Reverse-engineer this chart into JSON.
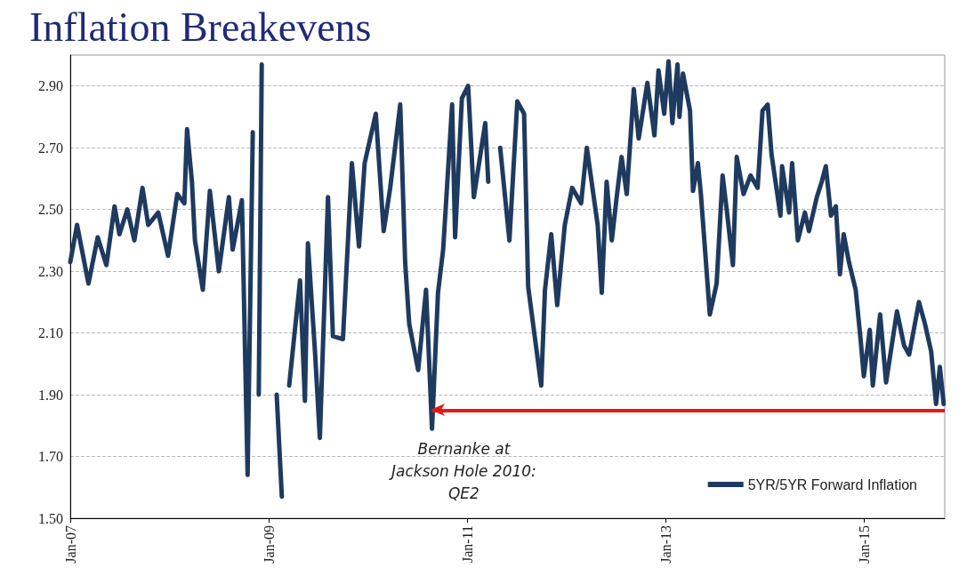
{
  "chart_data": {
    "type": "line",
    "title": "Inflation Breakevens",
    "x": [
      "2007-01-01",
      "2007-01-26",
      "2007-03-09",
      "2007-04-12",
      "2007-05-14",
      "2007-06-13",
      "2007-07-01",
      "2007-07-30",
      "2007-08-25",
      "2007-09-24",
      "2007-10-15",
      "2007-11-21",
      "2007-12-27",
      "2008-01-30",
      "2008-02-25",
      "2008-03-06",
      "2008-03-24",
      "2008-04-04",
      "2008-05-03",
      "2008-05-29",
      "2008-07-01",
      "2008-08-07",
      "2008-08-21",
      "2008-09-24",
      "2008-10-15",
      "2008-11-03",
      "2008-11-14",
      "2008-11-25",
      "2008-12-06",
      "2008-12-13",
      "2009-01-12",
      "2009-01-30",
      "2009-02-18",
      "2009-03-06",
      "2009-03-17",
      "2009-04-26",
      "2009-05-14",
      "2009-05-25",
      "2009-06-20",
      "2009-07-08",
      "2009-08-07",
      "2009-08-25",
      "2009-10-01",
      "2009-11-03",
      "2009-11-29",
      "2009-12-20",
      "2010-01-30",
      "2010-02-28",
      "2010-03-24",
      "2010-04-30",
      "2010-05-18",
      "2010-06-02",
      "2010-07-05",
      "2010-08-03",
      "2010-08-25",
      "2010-09-16",
      "2010-10-05",
      "2010-11-07",
      "2010-11-18",
      "2010-12-13",
      "2011-01-05",
      "2011-01-26",
      "2011-03-09",
      "2011-03-20",
      "2011-04-19",
      "2011-05-03",
      "2011-06-06",
      "2011-07-05",
      "2011-07-30",
      "2011-08-14",
      "2011-10-01",
      "2011-10-15",
      "2011-11-07",
      "2011-11-29",
      "2011-12-27",
      "2012-01-23",
      "2012-02-25",
      "2012-03-17",
      "2012-04-26",
      "2012-05-11",
      "2012-05-29",
      "2012-06-17",
      "2012-07-05",
      "2012-07-23",
      "2012-08-11",
      "2012-09-06",
      "2012-09-24",
      "2012-10-26",
      "2012-11-21",
      "2012-12-06",
      "2012-12-27",
      "2013-01-12",
      "2013-01-26",
      "2013-02-14",
      "2013-02-21",
      "2013-03-06",
      "2013-04-01",
      "2013-04-12",
      "2013-04-30",
      "2013-05-11",
      "2013-06-13",
      "2013-07-08",
      "2013-07-30",
      "2013-08-14",
      "2013-09-06",
      "2013-09-20",
      "2013-10-15",
      "2013-11-10",
      "2013-12-06",
      "2013-12-24",
      "2014-01-12",
      "2014-01-26",
      "2014-02-28",
      "2014-03-06",
      "2014-04-01",
      "2014-04-12",
      "2014-05-03",
      "2014-05-29",
      "2014-06-13",
      "2014-07-12",
      "2014-07-30",
      "2014-08-14",
      "2014-09-02",
      "2014-09-20",
      "2014-10-05",
      "2014-10-19",
      "2014-11-07",
      "2014-12-02",
      "2014-12-20",
      "2015-01-01",
      "2015-01-23",
      "2015-02-03",
      "2015-03-02",
      "2015-03-24",
      "2015-05-03",
      "2015-05-29",
      "2015-06-17",
      "2015-07-23",
      "2015-08-14",
      "2015-09-06",
      "2015-09-24",
      "2015-10-08",
      "2015-10-22"
    ],
    "series": [
      {
        "name": "5YR/5YR Forward Inflation",
        "color": "#1f3a5f",
        "values": [
          2.33,
          2.45,
          2.26,
          2.41,
          2.32,
          2.51,
          2.42,
          2.5,
          2.4,
          2.57,
          2.45,
          2.49,
          2.35,
          2.55,
          2.52,
          2.76,
          2.59,
          2.4,
          2.24,
          2.56,
          2.3,
          2.54,
          2.37,
          2.53,
          1.64,
          2.75,
          null,
          1.9,
          2.97,
          null,
          null,
          1.9,
          1.57,
          null,
          1.93,
          2.27,
          1.88,
          2.39,
          2.04,
          1.76,
          2.54,
          2.09,
          2.08,
          2.65,
          2.38,
          2.65,
          2.81,
          2.43,
          2.57,
          2.84,
          2.33,
          2.13,
          1.98,
          2.24,
          1.79,
          2.23,
          2.37,
          2.84,
          2.41,
          2.86,
          2.9,
          2.54,
          2.78,
          2.59,
          null,
          2.7,
          2.4,
          2.85,
          2.81,
          2.25,
          1.93,
          2.24,
          2.42,
          2.19,
          2.45,
          2.57,
          2.52,
          2.7,
          2.45,
          2.23,
          2.59,
          2.4,
          2.54,
          2.67,
          2.55,
          2.89,
          2.73,
          2.91,
          2.74,
          2.95,
          2.81,
          2.98,
          2.78,
          2.97,
          2.8,
          2.94,
          2.82,
          2.56,
          2.65,
          2.55,
          2.16,
          2.26,
          2.61,
          2.5,
          2.32,
          2.67,
          2.55,
          2.61,
          2.57,
          2.82,
          2.84,
          2.68,
          2.48,
          2.64,
          2.49,
          2.65,
          2.4,
          2.49,
          2.43,
          2.54,
          2.59,
          2.64,
          2.48,
          2.51,
          2.29,
          2.42,
          2.33,
          2.24,
          2.08,
          1.96,
          2.11,
          1.93,
          2.16,
          1.94,
          2.17,
          2.06,
          2.03,
          2.2,
          2.13,
          2.04,
          1.87,
          1.99,
          1.87
        ]
      }
    ],
    "xlim": [
      "2007-01-01",
      "2015-10-26"
    ],
    "xticks": [
      {
        "value": "2007-01-01",
        "label": "Jan-07"
      },
      {
        "value": "2009-01-01",
        "label": "Jan-09"
      },
      {
        "value": "2011-01-01",
        "label": "Jan-11"
      },
      {
        "value": "2013-01-01",
        "label": "Jan-13"
      },
      {
        "value": "2015-01-01",
        "label": "Jan-15"
      }
    ],
    "ylim": [
      1.5,
      3.0
    ],
    "yticks": [
      {
        "value": 1.5,
        "label": "1.50"
      },
      {
        "value": 1.7,
        "label": "1.70"
      },
      {
        "value": 1.9,
        "label": "1.90"
      },
      {
        "value": 2.1,
        "label": "2.10"
      },
      {
        "value": 2.3,
        "label": "2.30"
      },
      {
        "value": 2.5,
        "label": "2.50"
      },
      {
        "value": 2.7,
        "label": "2.70"
      },
      {
        "value": 2.9,
        "label": "2.90"
      }
    ],
    "annotations": [
      "Bernanke at\nJackson Hole 2010:\nQE2"
    ],
    "ref_lines": [
      {
        "axis": "y",
        "value": 1.85,
        "color": "#e31a1c"
      }
    ],
    "grid": "y",
    "legend": "bottom right",
    "marker": "none",
    "line_style": "solid"
  }
}
